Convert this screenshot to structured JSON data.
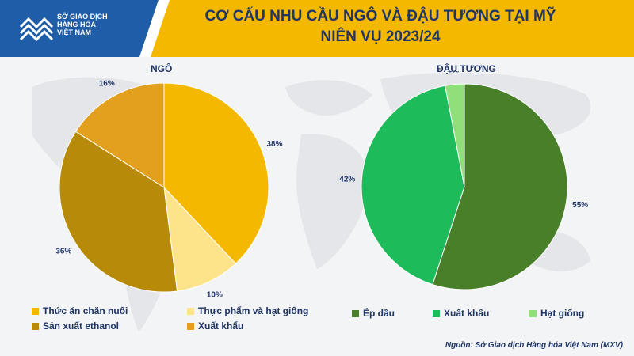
{
  "header": {
    "logo_lines": [
      "SỞ GIAO DỊCH",
      "HÀNG HÓA",
      "VIỆT NAM"
    ],
    "title_line1": "CƠ CẤU NHU CẦU NGÔ VÀ ĐẬU TƯƠNG TẠI MỸ",
    "title_line2": "NIÊN VỤ 2023/24"
  },
  "source": "Nguồn: Sở Giao dịch Hàng hóa Việt Nam (MXV)",
  "colors": {
    "header_yellow": "#f5b800",
    "title_navy": "#1f3566"
  },
  "chart_data": [
    {
      "type": "pie",
      "title": "NGÔ",
      "start": "top",
      "direction": "clockwise",
      "slices": [
        {
          "label": "Thức ăn chăn nuôi",
          "value": 38,
          "display": "38%",
          "color": "#f5b800"
        },
        {
          "label": "Thực phẩm và hạt giống",
          "value": 10,
          "display": "10%",
          "color": "#fde38a"
        },
        {
          "label": "Sản xuất ethanol",
          "value": 36,
          "display": "36%",
          "color": "#b88a0a"
        },
        {
          "label": "Xuất khẩu",
          "value": 16,
          "display": "16%",
          "color": "#e3a01e"
        }
      ]
    },
    {
      "type": "pie",
      "title": "ĐẬU TƯƠNG",
      "start": "top",
      "direction": "clockwise",
      "slices": [
        {
          "label": "Ép dầu",
          "value": 55,
          "display": "55%",
          "color": "#4a7f2a"
        },
        {
          "label": "Xuất khẩu",
          "value": 42,
          "display": "42%",
          "color": "#1dbb5a"
        },
        {
          "label": "Hạt giống",
          "value": 3,
          "display": "3%",
          "color": "#8fe07a"
        }
      ]
    }
  ]
}
